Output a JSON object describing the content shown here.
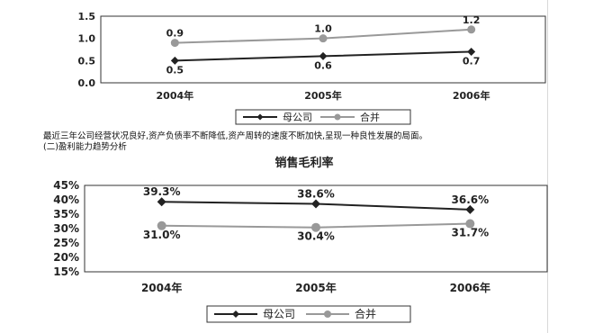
{
  "text": {
    "paragraph": "最近三年公司经营状况良好,资产负债率不断降低,资产周转的速度不断加快,呈现一种良性发展的局面。",
    "section_heading": "(二)盈利能力趋势分析"
  },
  "chart_data": [
    {
      "type": "line",
      "title": "",
      "categories": [
        "2004年",
        "2005年",
        "2006年"
      ],
      "ylim": [
        0.0,
        1.5
      ],
      "yticks": [
        "1.5",
        "1.0",
        "0.5",
        "0.0"
      ],
      "grid": false,
      "legend": "bottom",
      "series": [
        {
          "name": "母公司",
          "values": [
            0.5,
            0.6,
            0.7
          ],
          "labels": [
            "0.5",
            "0.6",
            "0.7"
          ],
          "color": "#222222",
          "marker": "diamond"
        },
        {
          "name": "合并",
          "values": [
            0.9,
            1.0,
            1.2
          ],
          "labels": [
            "0.9",
            "1.0",
            "1.2"
          ],
          "color": "#999999",
          "marker": "circle"
        }
      ]
    },
    {
      "type": "line",
      "title": "销售毛利率",
      "categories": [
        "2004年",
        "2005年",
        "2006年"
      ],
      "ylim": [
        15,
        45
      ],
      "yticks": [
        "45%",
        "40%",
        "35%",
        "30%",
        "25%",
        "20%",
        "15%"
      ],
      "grid": false,
      "legend": "bottom",
      "series": [
        {
          "name": "母公司",
          "values": [
            39.3,
            38.6,
            36.6
          ],
          "labels": [
            "39.3%",
            "38.6%",
            "36.6%"
          ],
          "color": "#222222",
          "marker": "diamond"
        },
        {
          "name": "合并",
          "values": [
            31.0,
            30.4,
            31.7
          ],
          "labels": [
            "31.0%",
            "30.4%",
            "31.7%"
          ],
          "color": "#999999",
          "marker": "circle"
        }
      ]
    }
  ]
}
